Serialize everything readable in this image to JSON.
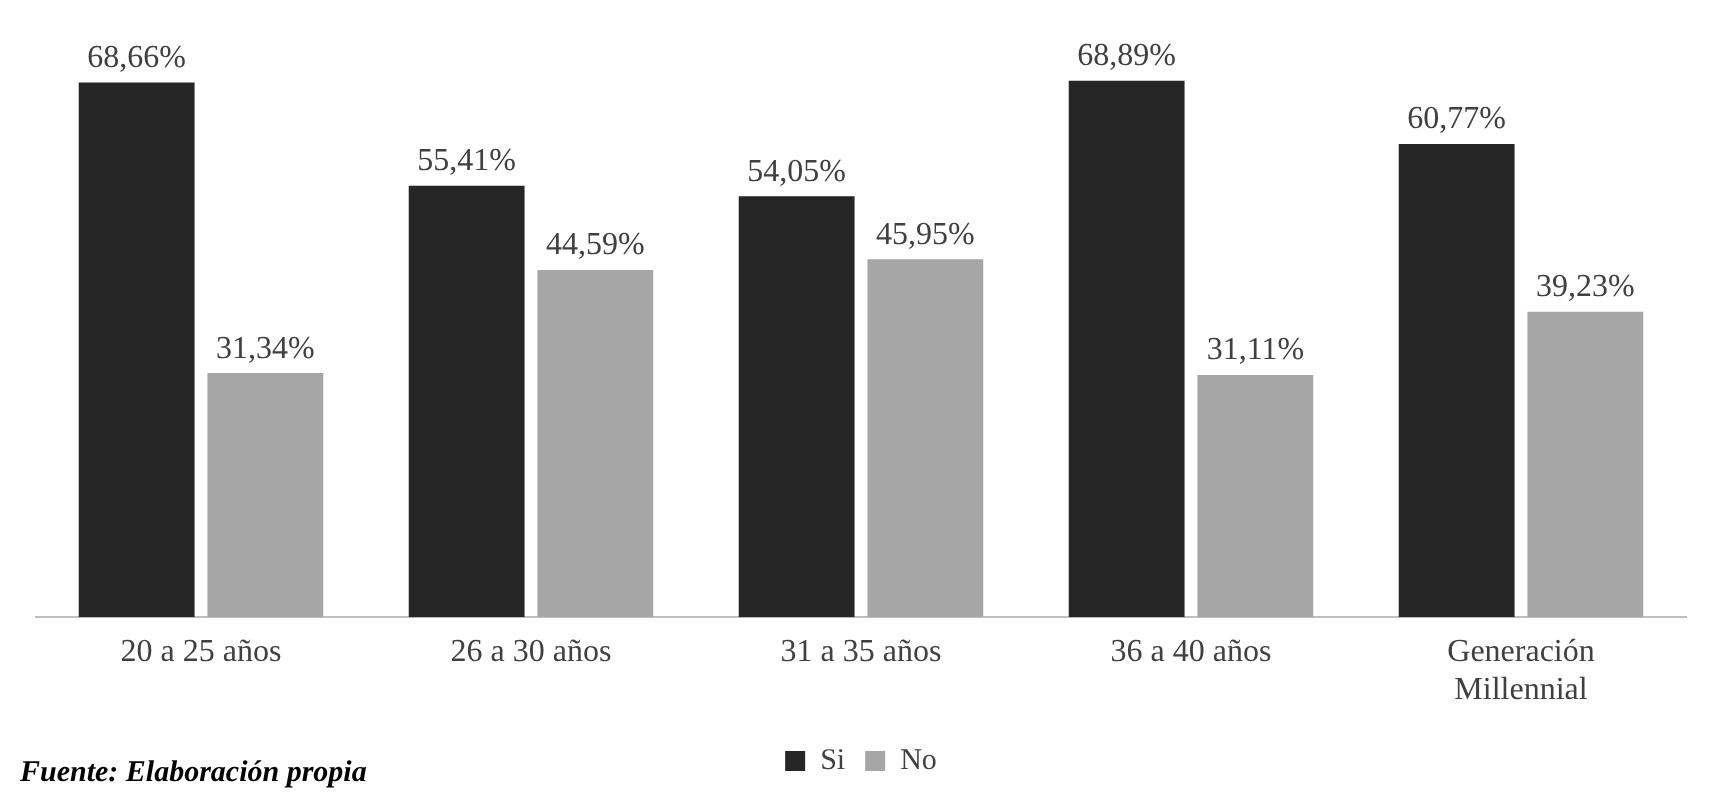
{
  "chart_data": {
    "type": "bar",
    "categories": [
      "20 a 25 años",
      "26 a 30 años",
      "31 a 35 años",
      "36 a 40 años",
      "Generación\nMillennial"
    ],
    "series": [
      {
        "name": "Si",
        "color": "#262626",
        "values": [
          68.66,
          55.41,
          54.05,
          68.89,
          60.77
        ],
        "value_labels": [
          "68,66%",
          "55,41%",
          "54,05%",
          "68,89%",
          "60,77%"
        ]
      },
      {
        "name": "No",
        "color": "#a6a6a6",
        "values": [
          31.34,
          44.59,
          45.95,
          31.11,
          39.23
        ],
        "value_labels": [
          "31,34%",
          "44,59%",
          "45,95%",
          "31,11%",
          "39,23%"
        ]
      }
    ],
    "legend": "bottom",
    "grid": false,
    "annotations": [
      "Fuente: Elaboración propia"
    ]
  }
}
